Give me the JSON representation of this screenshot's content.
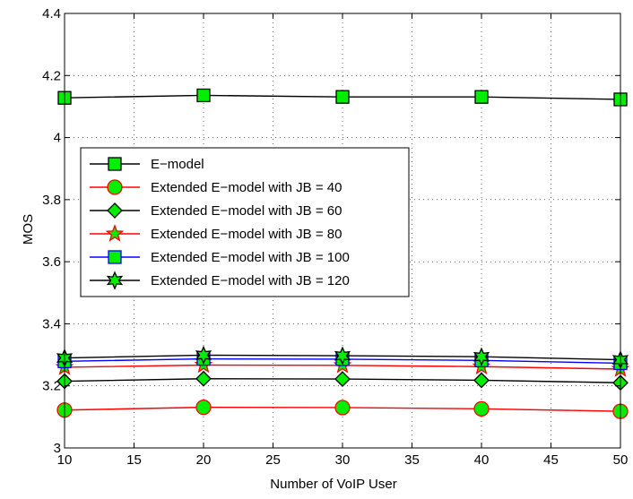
{
  "chart_data": {
    "type": "line",
    "xlabel": "Number of VoIP User",
    "ylabel": "MOS",
    "xlim": [
      10,
      50
    ],
    "ylim": [
      3,
      4.4
    ],
    "xticks": [
      10,
      15,
      20,
      25,
      30,
      35,
      40,
      45,
      50
    ],
    "yticks": [
      3,
      3.2,
      3.4,
      3.6,
      3.8,
      4,
      4.2,
      4.4
    ],
    "grid": true,
    "legend_position": "upper-left",
    "x": [
      10,
      20,
      30,
      40,
      50
    ],
    "series": [
      {
        "name": "E−model",
        "color": "#000000",
        "marker": "square",
        "marker_fill": "#00ee00",
        "values": [
          4.128,
          4.136,
          4.131,
          4.131,
          4.123
        ]
      },
      {
        "name": "Extended E−model with JB = 40",
        "color": "#ff0000",
        "marker": "circle",
        "marker_fill": "#00ee00",
        "values": [
          3.122,
          3.131,
          3.13,
          3.126,
          3.118
        ]
      },
      {
        "name": "Extended E−model with JB = 60",
        "color": "#000000",
        "marker": "diamond",
        "marker_fill": "#00ee00",
        "values": [
          3.215,
          3.223,
          3.222,
          3.218,
          3.21
        ]
      },
      {
        "name": "Extended E−model with JB = 80",
        "color": "#ff0000",
        "marker": "star5",
        "marker_fill": "#00ee00",
        "values": [
          3.26,
          3.267,
          3.266,
          3.262,
          3.254
        ]
      },
      {
        "name": "Extended E−model with JB = 100",
        "color": "#0000ff",
        "marker": "square",
        "marker_fill": "#00ee00",
        "values": [
          3.279,
          3.287,
          3.286,
          3.282,
          3.273
        ]
      },
      {
        "name": "Extended E−model with JB = 120",
        "color": "#000000",
        "marker": "star6",
        "marker_fill": "#00ee00",
        "values": [
          3.29,
          3.299,
          3.297,
          3.294,
          3.284
        ]
      }
    ]
  }
}
